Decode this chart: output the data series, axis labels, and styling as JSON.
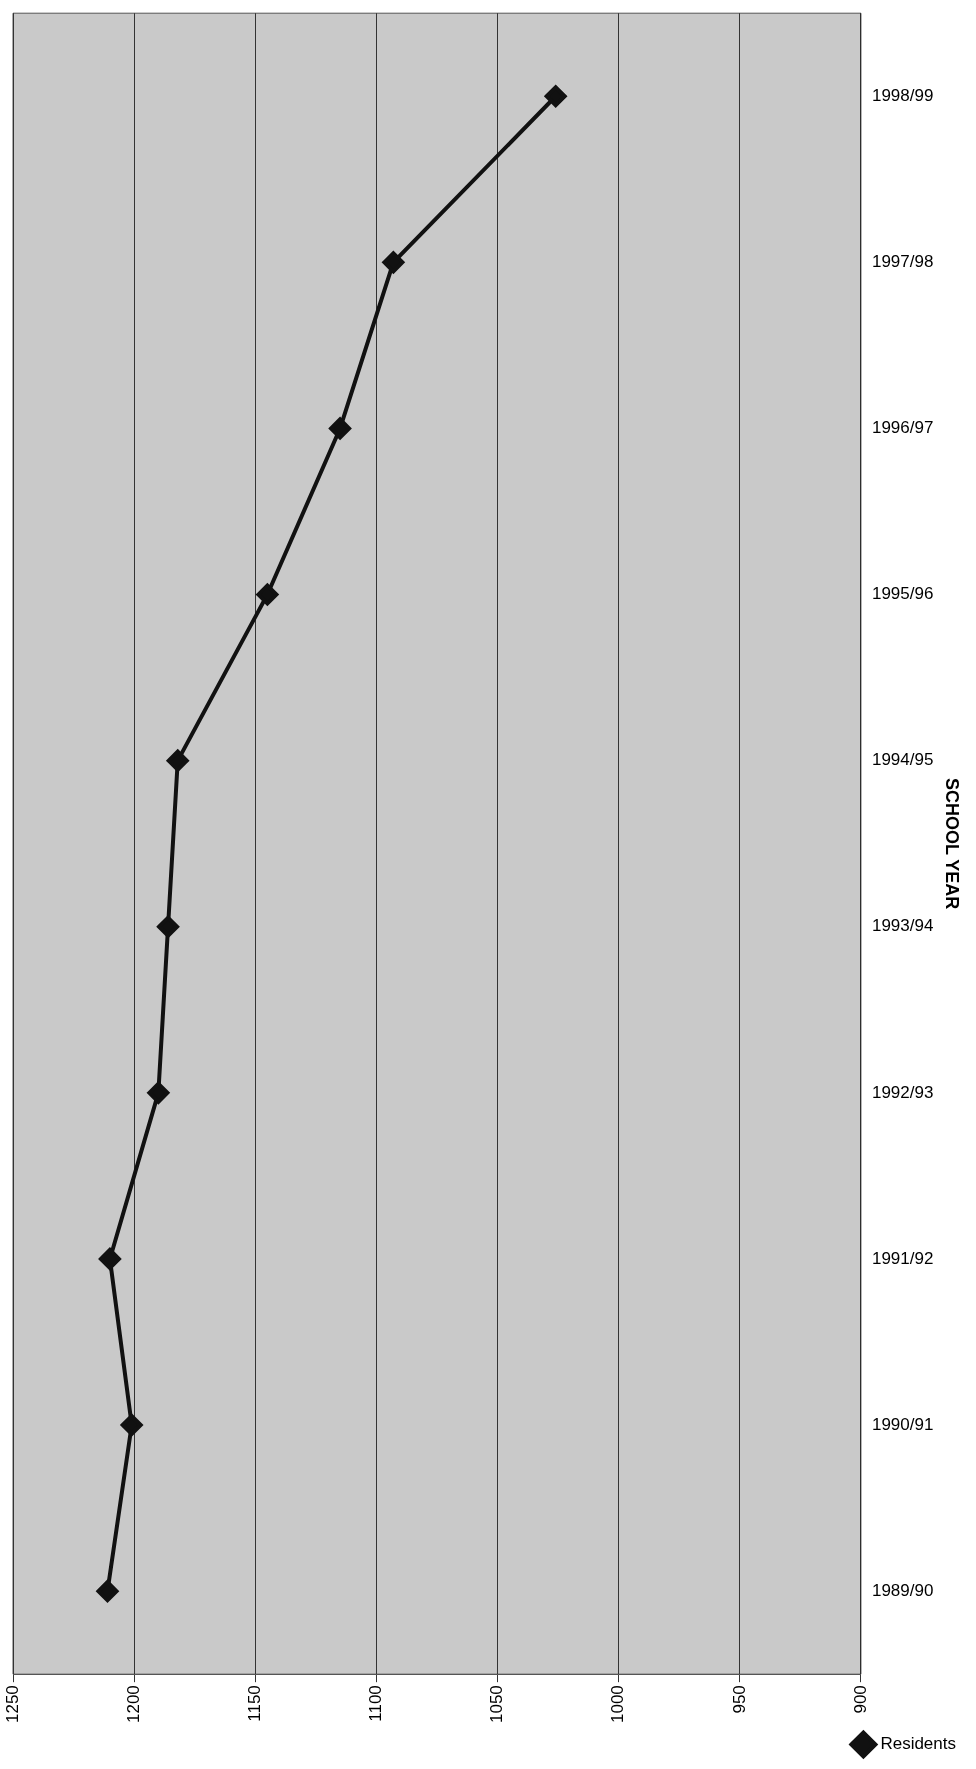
{
  "chart_data": {
    "type": "line",
    "orientation": "horizontal",
    "ylabel": "SCHOOL YEAR",
    "categories": [
      "1998/99",
      "1997/98",
      "1996/97",
      "1995/96",
      "1994/95",
      "1993/94",
      "1992/93",
      "1991/92",
      "1990/91",
      "1989/90"
    ],
    "series": [
      {
        "name": "Residents",
        "color": "#111111",
        "values": [
          1026,
          1093,
          1115,
          1145,
          1182,
          1186,
          1190,
          1210,
          1201,
          1211
        ]
      }
    ],
    "xlim": [
      1250,
      900
    ],
    "xticks": [
      900,
      950,
      1000,
      1050,
      1100,
      1150,
      1200,
      1250
    ],
    "grid": "x",
    "legend": "bottom right",
    "marker": "diamond",
    "line_style": "solid"
  }
}
